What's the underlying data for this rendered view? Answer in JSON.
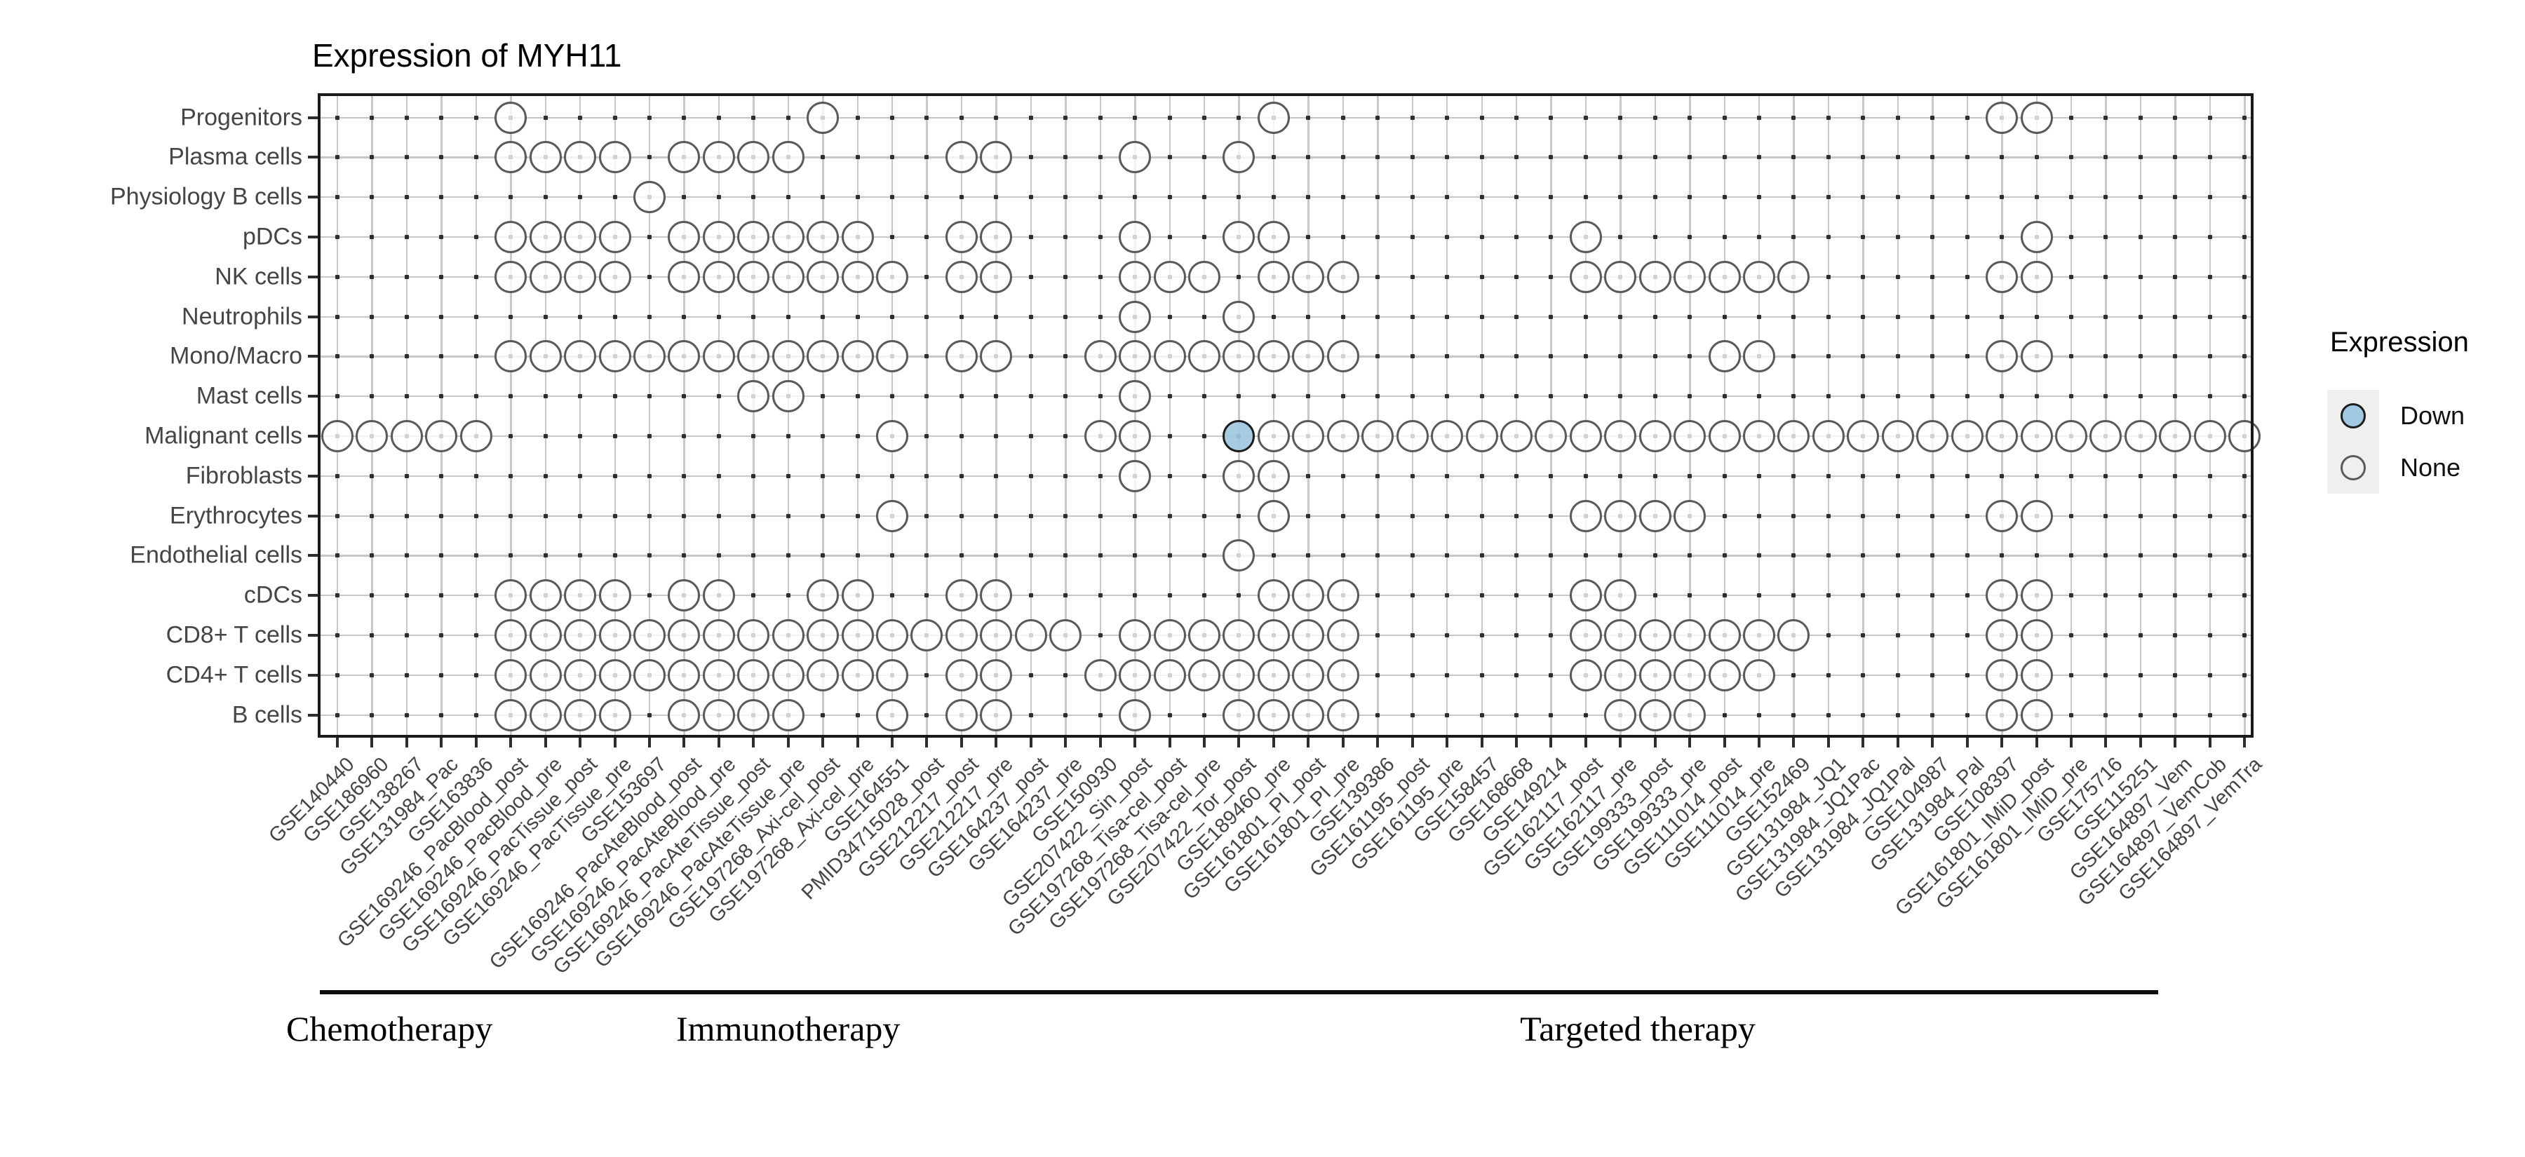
{
  "chart_data": {
    "type": "scatter",
    "title": "Expression of MYH11",
    "rows": [
      "Progenitors",
      "Plasma cells",
      "Physiology B cells",
      "pDCs",
      "NK cells",
      "Neutrophils",
      "Mono/Macro",
      "Mast cells",
      "Malignant cells",
      "Fibroblasts",
      "Erythrocytes",
      "Endothelial cells",
      "cDCs",
      "CD8+ T cells",
      "CD4+ T cells",
      "B cells"
    ],
    "columns": [
      "GSE140440",
      "GSE186960",
      "GSE138267",
      "GSE131984_Pac",
      "GSE163836",
      "GSE169246_PacBlood_post",
      "GSE169246_PacBlood_pre",
      "GSE169246_PacTissue_post",
      "GSE169246_PacTissue_pre",
      "GSE153697",
      "GSE169246_PacAteBlood_post",
      "GSE169246_PacAteBlood_pre",
      "GSE169246_PacAteTissue_post",
      "GSE169246_PacAteTissue_pre",
      "GSE197268_Axi-cel_post",
      "GSE197268_Axi-cel_pre",
      "GSE164551",
      "PMID34715028_post",
      "GSE212217_post",
      "GSE212217_pre",
      "GSE164237_post",
      "GSE164237_pre",
      "GSE150930",
      "GSE207422_Sin_post",
      "GSE197268_Tisa-cel_post",
      "GSE197268_Tisa-cel_pre",
      "GSE207422_Tor_post",
      "GSE189460_pre",
      "GSE161801_PI_post",
      "GSE161801_PI_pre",
      "GSE139386",
      "GSE161195_post",
      "GSE161195_pre",
      "GSE158457",
      "GSE168668",
      "GSE149214",
      "GSE162117_post",
      "GSE162117_pre",
      "GSE199333_post",
      "GSE199333_pre",
      "GSE111014_post",
      "GSE111014_pre",
      "GSE152469",
      "GSE131984_JQ1",
      "GSE131984_JQ1Pac",
      "GSE131984_JQ1Pal",
      "GSE104987",
      "GSE131984_Pal",
      "GSE108397",
      "GSE161801_IMiD_post",
      "GSE161801_IMiD_pre",
      "GSE175716",
      "GSE115251",
      "GSE164897_Vem",
      "GSE164897_VemCob",
      "GSE164897_VemTra"
    ],
    "points_none": {
      "Progenitors": [
        6,
        15,
        28,
        49,
        50
      ],
      "Plasma cells": [
        6,
        7,
        8,
        9,
        11,
        12,
        13,
        14,
        19,
        20,
        24,
        27
      ],
      "Physiology B cells": [
        10
      ],
      "pDCs": [
        6,
        7,
        8,
        9,
        11,
        12,
        13,
        14,
        15,
        16,
        19,
        20,
        24,
        27,
        28,
        37,
        50
      ],
      "NK cells": [
        6,
        7,
        8,
        9,
        11,
        12,
        13,
        14,
        15,
        16,
        17,
        19,
        20,
        24,
        25,
        26,
        28,
        29,
        30,
        37,
        38,
        39,
        40,
        41,
        42,
        43,
        49,
        50
      ],
      "Neutrophils": [
        24,
        27
      ],
      "Mono/Macro": [
        6,
        7,
        8,
        9,
        10,
        11,
        12,
        13,
        14,
        15,
        16,
        17,
        19,
        20,
        23,
        24,
        25,
        26,
        27,
        28,
        29,
        30,
        41,
        42,
        49,
        50
      ],
      "Mast cells": [
        13,
        14,
        24
      ],
      "Malignant cells": [
        1,
        2,
        3,
        4,
        5,
        17,
        23,
        24,
        28,
        29,
        30,
        31,
        32,
        33,
        34,
        35,
        36,
        37,
        38,
        39,
        40,
        41,
        42,
        43,
        44,
        45,
        46,
        47,
        48,
        49,
        50,
        51,
        52,
        53,
        54,
        55,
        56
      ],
      "Fibroblasts": [
        24,
        27,
        28
      ],
      "Erythrocytes": [
        17,
        28,
        37,
        38,
        39,
        40,
        49,
        50
      ],
      "Endothelial cells": [
        27
      ],
      "cDCs": [
        6,
        7,
        8,
        9,
        11,
        12,
        15,
        16,
        19,
        20,
        28,
        29,
        30,
        37,
        38,
        49,
        50
      ],
      "CD8+ T cells": [
        6,
        7,
        8,
        9,
        10,
        11,
        12,
        13,
        14,
        15,
        16,
        17,
        18,
        19,
        20,
        21,
        22,
        24,
        25,
        26,
        27,
        28,
        29,
        30,
        37,
        38,
        39,
        40,
        41,
        42,
        43,
        49,
        50
      ],
      "CD4+ T cells": [
        6,
        7,
        8,
        9,
        10,
        11,
        12,
        13,
        14,
        15,
        16,
        17,
        19,
        20,
        23,
        24,
        25,
        26,
        27,
        28,
        29,
        30,
        37,
        38,
        39,
        40,
        41,
        42,
        49,
        50
      ],
      "B cells": [
        6,
        7,
        8,
        9,
        11,
        12,
        13,
        14,
        17,
        19,
        20,
        24,
        27,
        28,
        29,
        30,
        38,
        39,
        40,
        49,
        50
      ]
    },
    "points_down": {
      "Malignant cells": [
        27
      ]
    },
    "groups": [
      {
        "label": "Chemotherapy",
        "col_start": 1,
        "col_end": 4
      },
      {
        "label": "Immunotherapy",
        "col_start": 5,
        "col_end": 23
      },
      {
        "label": "Targeted therapy",
        "col_start": 24,
        "col_end": 53
      }
    ],
    "legend": {
      "title": "Expression",
      "items": [
        {
          "label": "Down",
          "color": "#a0c8e0"
        },
        {
          "label": "None",
          "color": "#ffffff"
        }
      ]
    },
    "colors": {
      "down_fill": "#a0c8e0",
      "down_stroke": "#1c1c1c",
      "none_stroke": "#5a5a5a",
      "grid": "#c8c8c8",
      "axis_text": "#454545"
    },
    "grid": true,
    "legend_position": "right"
  }
}
